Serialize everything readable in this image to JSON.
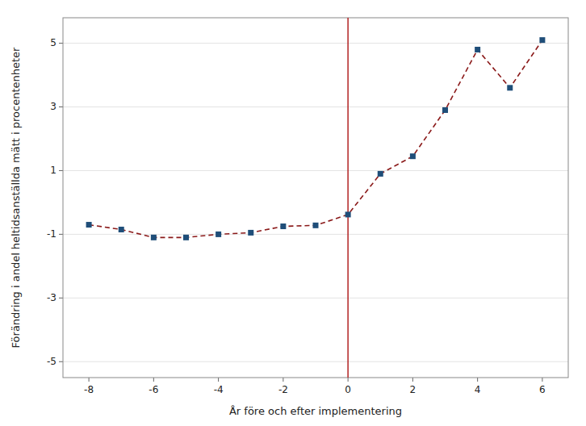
{
  "chart_data": {
    "type": "line",
    "xlabel": "År före och efter implementering",
    "ylabel": "Förändring i andel heltidsanställda mätt i procentenheter",
    "x": [
      -8,
      -7,
      -6,
      -5,
      -4,
      -3,
      -2,
      -1,
      0,
      1,
      2,
      3,
      4,
      5,
      6
    ],
    "values": [
      -0.7,
      -0.85,
      -1.1,
      -1.1,
      -1.0,
      -0.95,
      -0.75,
      -0.72,
      -0.38,
      0.9,
      1.45,
      2.9,
      4.8,
      3.6,
      5.1
    ],
    "color": "#8B1A1A",
    "colors": [
      "#1F4E79",
      "#1F4E79",
      "#1F4E79",
      "#1F4E79",
      "#1F4E79",
      "#1F4E79",
      "#1F4E79",
      "#1F4E79",
      "#1F4E79",
      "#1F4E79",
      "#1F4E79",
      "#1F4E79",
      "#1F4E79",
      "#1F4E79",
      "#1F4E79"
    ],
    "line_style": "dashed",
    "marker": "square",
    "xlim": [
      -8.8,
      6.8
    ],
    "ylim": [
      -5.5,
      5.8
    ],
    "xticks": [
      -8,
      -6,
      -4,
      -2,
      0,
      2,
      4,
      6
    ],
    "yticks": [
      -5,
      -3,
      -1,
      1,
      3,
      5
    ],
    "grid": true
  }
}
